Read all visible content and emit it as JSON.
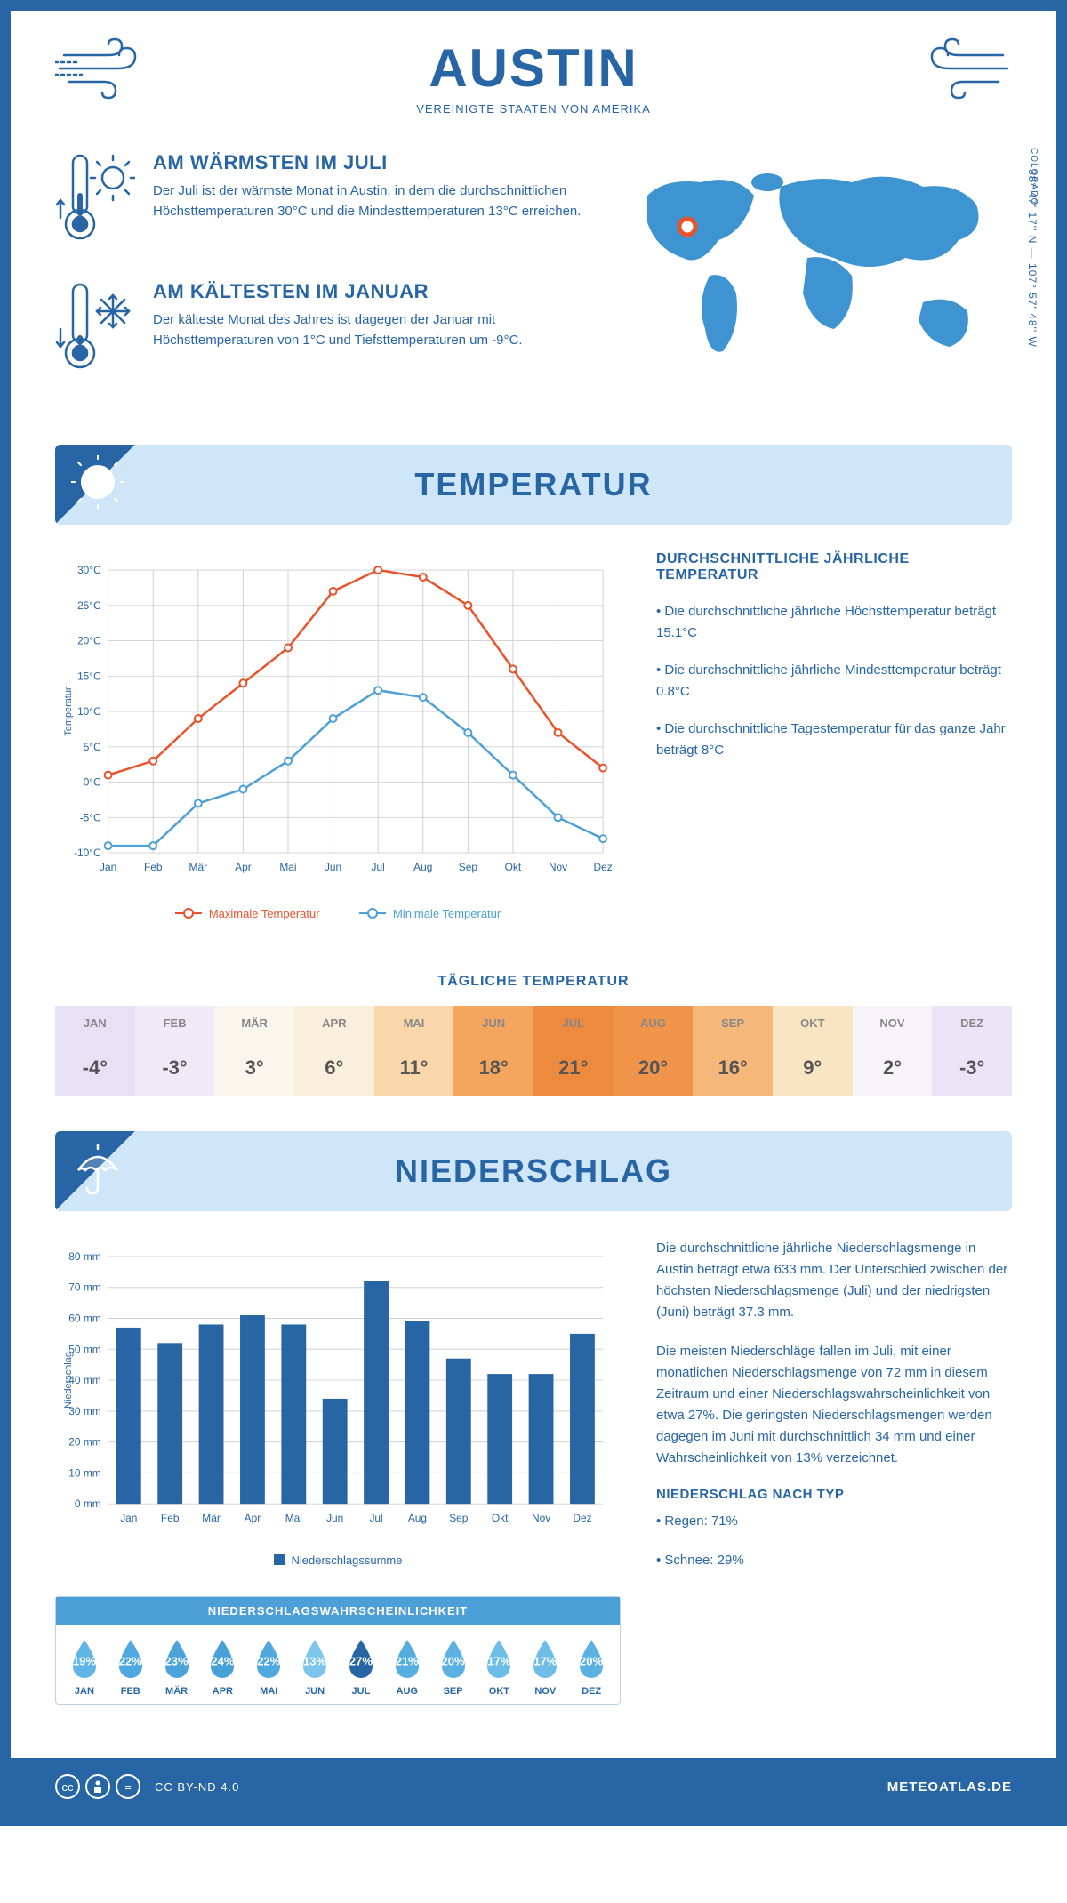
{
  "header": {
    "city": "AUSTIN",
    "country": "VEREINIGTE STAATEN VON AMERIKA",
    "coords": "38° 47' 17'' N — 107° 57' 48'' W",
    "region": "COLORADO"
  },
  "colors": {
    "primary": "#2765a5",
    "light_blue": "#cfe6f8",
    "chart_max": "#e8522b",
    "chart_min": "#4d9fd8",
    "bar": "#2765a5"
  },
  "warm": {
    "title": "AM WÄRMSTEN IM JULI",
    "text": "Der Juli ist der wärmste Monat in Austin, in dem die durchschnittlichen Höchsttemperaturen 30°C und die Mindesttemperaturen 13°C erreichen."
  },
  "cold": {
    "title": "AM KÄLTESTEN IM JANUAR",
    "text": "Der kälteste Monat des Jahres ist dagegen der Januar mit Höchsttemperaturen von 1°C und Tiefsttemperaturen um -9°C."
  },
  "temp_section": {
    "title": "TEMPERATUR",
    "side_title": "DURCHSCHNITTLICHE JÄHRLICHE TEMPERATUR",
    "bullets": [
      "• Die durchschnittliche jährliche Höchsttemperatur beträgt 15.1°C",
      "• Die durchschnittliche jährliche Mindesttemperatur beträgt 0.8°C",
      "• Die durchschnittliche Tagestemperatur für das ganze Jahr beträgt 8°C"
    ],
    "legend_max": "Maximale Temperatur",
    "legend_min": "Minimale Temperatur",
    "chart": {
      "months": [
        "Jan",
        "Feb",
        "Mär",
        "Apr",
        "Mai",
        "Jun",
        "Jul",
        "Aug",
        "Sep",
        "Okt",
        "Nov",
        "Dez"
      ],
      "max_values": [
        1,
        3,
        9,
        14,
        19,
        27,
        30,
        29,
        25,
        16,
        7,
        2
      ],
      "min_values": [
        -9,
        -9,
        -3,
        -1,
        3,
        9,
        13,
        12,
        7,
        1,
        -5,
        -8
      ],
      "ylim": [
        -10,
        30
      ],
      "ytick_step": 5,
      "y_axis_label": "Temperatur",
      "max_color": "#e8522b",
      "min_color": "#4d9fd8",
      "grid_color": "#d0d0d0"
    }
  },
  "daily": {
    "title": "TÄGLICHE TEMPERATUR",
    "months": [
      "JAN",
      "FEB",
      "MÄR",
      "APR",
      "MAI",
      "JUN",
      "JUL",
      "AUG",
      "SEP",
      "OKT",
      "NOV",
      "DEZ"
    ],
    "values": [
      "-4°",
      "-3°",
      "3°",
      "6°",
      "11°",
      "18°",
      "21°",
      "20°",
      "16°",
      "9°",
      "2°",
      "-3°"
    ],
    "cell_colors": [
      "#e6e1f5",
      "#eeeaf7",
      "#faf6ee",
      "#f9efdc",
      "#f9d7aa",
      "#f4a65e",
      "#ed8a3d",
      "#f0944a",
      "#f5b87a",
      "#f9e4c4",
      "#f7f4f9",
      "#e9e4f6"
    ]
  },
  "precip_section": {
    "title": "NIEDERSCHLAG",
    "text1": "Die durchschnittliche jährliche Niederschlagsmenge in Austin beträgt etwa 633 mm. Der Unterschied zwischen der höchsten Niederschlagsmenge (Juli) und der niedrigsten (Juni) beträgt 37.3 mm.",
    "text2": "Die meisten Niederschläge fallen im Juli, mit einer monatlichen Niederschlagsmenge von 72 mm in diesem Zeitraum und einer Niederschlagswahrscheinlichkeit von etwa 27%. Die geringsten Niederschlagsmengen werden dagegen im Juni mit durchschnittlich 34 mm und einer Wahrscheinlichkeit von 13% verzeichnet.",
    "type_title": "NIEDERSCHLAG NACH TYP",
    "type_bullets": [
      "• Regen: 71%",
      "• Schnee: 29%"
    ],
    "chart": {
      "months": [
        "Jan",
        "Feb",
        "Mär",
        "Apr",
        "Mai",
        "Jun",
        "Jul",
        "Aug",
        "Sep",
        "Okt",
        "Nov",
        "Dez"
      ],
      "values": [
        57,
        52,
        58,
        61,
        58,
        34,
        72,
        59,
        47,
        42,
        42,
        55
      ],
      "ylim": [
        0,
        80
      ],
      "ytick_step": 10,
      "y_axis_label": "Niederschlag",
      "bar_color": "#2765a5",
      "legend": "Niederschlagssumme"
    },
    "prob": {
      "title": "NIEDERSCHLAGSWAHRSCHEINLICHKEIT",
      "months": [
        "JAN",
        "FEB",
        "MÄR",
        "APR",
        "MAI",
        "JUN",
        "JUL",
        "AUG",
        "SEP",
        "OKT",
        "NOV",
        "DEZ"
      ],
      "values": [
        "19%",
        "22%",
        "23%",
        "24%",
        "22%",
        "13%",
        "27%",
        "21%",
        "20%",
        "17%",
        "17%",
        "20%"
      ],
      "colors": [
        "#5fb5e5",
        "#4fa8de",
        "#4ba3da",
        "#47a0d8",
        "#4fa8de",
        "#7cc5ec",
        "#2765a5",
        "#55aee0",
        "#5ab1e2",
        "#6ebde9",
        "#6ebde9",
        "#5ab1e2"
      ]
    }
  },
  "footer": {
    "license": "CC BY-ND 4.0",
    "site": "METEOATLAS.DE"
  }
}
